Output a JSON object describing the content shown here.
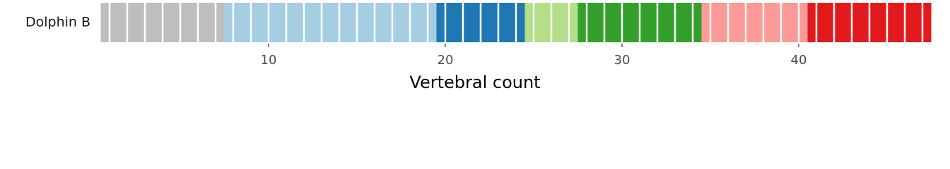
{
  "chart_data": {
    "type": "bar",
    "orientation": "horizontal",
    "stacked": true,
    "categories": [
      "Dolphin B"
    ],
    "xlabel": "Vertebral count",
    "xlim": [
      0.5,
      47.5
    ],
    "xticks": [
      10,
      20,
      30,
      40
    ],
    "series": [
      {
        "color": "#bebebe",
        "values": [
          7
        ]
      },
      {
        "color": "#a6cee3",
        "values": [
          12
        ]
      },
      {
        "color": "#1f78b4",
        "values": [
          5
        ]
      },
      {
        "color": "#b2df8a",
        "values": [
          3
        ]
      },
      {
        "color": "#33a02c",
        "values": [
          7
        ]
      },
      {
        "color": "#fb9a99",
        "values": [
          6
        ]
      },
      {
        "color": "#e31a1c",
        "values": [
          7
        ]
      }
    ]
  }
}
